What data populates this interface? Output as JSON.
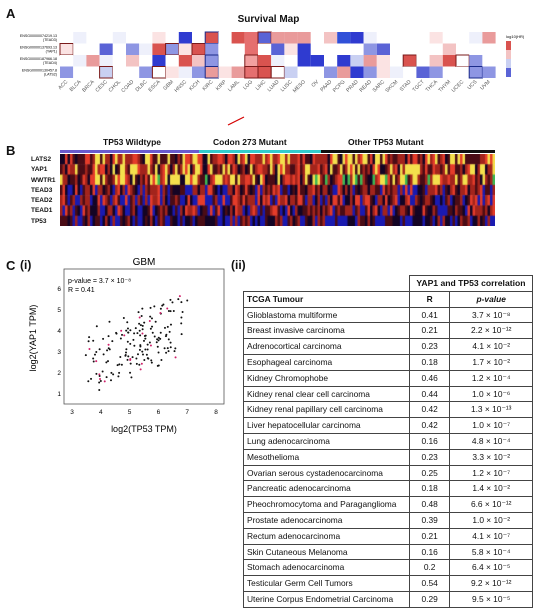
{
  "panelA": {
    "letter": "A",
    "title": "Survival Map",
    "rows": [
      "ENSG00000074219.13 (TEAD3)",
      "ENSG00000137693.13 (YAP1)",
      "ENSG00000187966.18 (TEAD4)",
      "ENSG00000130457.8 (LATS2)"
    ],
    "legend_title": "log10(HR)",
    "cancers": [
      "ACC",
      "BLCA",
      "BRCA",
      "CESC",
      "CHOL",
      "COAD",
      "DLBC",
      "ESCA",
      "GBM",
      "HNSC",
      "KICH",
      "KIRC",
      "KIRP",
      "LAML",
      "LGG",
      "LIHC",
      "LUAD",
      "LUSC",
      "MESO",
      "OV",
      "PAAD",
      "PCPG",
      "PRAD",
      "READ",
      "SARC",
      "SKCM",
      "STAD",
      "TGCT",
      "THCA",
      "THYM",
      "UCEC",
      "UCS",
      "UVM"
    ]
  },
  "panelB": {
    "letter": "B",
    "groups": [
      "TP53 Wildtype",
      "Codon 273 Mutant",
      "Other TP53 Mutant"
    ],
    "genes": [
      "LATS2",
      "YAP1",
      "WWTR1",
      "TEAD3",
      "TEAD2",
      "TEAD1",
      "TP53"
    ]
  },
  "panelC": {
    "letter": "C",
    "sub1": "(i)",
    "sub2": "(ii)",
    "scatter": {
      "title": "GBM",
      "pvalue_label": "p-value = 3.7 × 10⁻⁸",
      "r_label": "R = 0.41",
      "xlabel": "log2(TP53 TPM)",
      "ylabel": "log2(YAP1 TPM)",
      "xticks": [
        "3",
        "4",
        "5",
        "6",
        "7",
        "8"
      ],
      "yticks": [
        "1",
        "2",
        "3",
        "4",
        "5",
        "6"
      ]
    },
    "table": {
      "super_header": "YAP1 and TP53 correlation",
      "col_tumour": "TCGA Tumour",
      "col_r": "R",
      "col_p": "p-value",
      "rows": [
        {
          "tumour": "Glioblastoma multiforme",
          "r": "0.41",
          "p": "3.7 × 10⁻⁸"
        },
        {
          "tumour": "Breast invasive carcinoma",
          "r": "0.21",
          "p": "2.2 × 10⁻¹²"
        },
        {
          "tumour": "Adrenocortical carcinoma",
          "r": "0.23",
          "p": "4.1 × 10⁻²"
        },
        {
          "tumour": "Esophageal carcinoma",
          "r": "0.18",
          "p": "1.7 × 10⁻²"
        },
        {
          "tumour": "Kidney Chromophobe",
          "r": "0.46",
          "p": "1.2 × 10⁻⁴"
        },
        {
          "tumour": "Kidney renal clear cell carcinoma",
          "r": "0.44",
          "p": "1.0 × 10⁻⁶"
        },
        {
          "tumour": "Kidney renal papillary cell carcinoma",
          "r": "0.42",
          "p": "1.3 × 10⁻¹³"
        },
        {
          "tumour": "Liver hepatocellular carcinoma",
          "r": "0.42",
          "p": "1.0 × 10⁻⁷"
        },
        {
          "tumour": "Lung adenocarcinoma",
          "r": "0.16",
          "p": "4.8 × 10⁻⁴"
        },
        {
          "tumour": "Mesothelioma",
          "r": "0.23",
          "p": "3.3 × 10⁻²"
        },
        {
          "tumour": "Ovarian serous cystadenocarcinoma",
          "r": "0.25",
          "p": "1.2 × 10⁻⁷"
        },
        {
          "tumour": "Pancreatic adenocarcinoma",
          "r": "0.18",
          "p": "1.4 × 10⁻²"
        },
        {
          "tumour": "Pheochromocytoma and Paraganglioma",
          "r": "0.48",
          "p": "6.6 × 10⁻¹²"
        },
        {
          "tumour": "Prostate adenocarcinoma",
          "r": "0.39",
          "p": "1.0 × 10⁻²"
        },
        {
          "tumour": "Rectum adenocarcinoma",
          "r": "0.21",
          "p": "4.1 × 10⁻⁷"
        },
        {
          "tumour": "Skin Cutaneous Melanoma",
          "r": "0.16",
          "p": "5.8 × 10⁻⁴"
        },
        {
          "tumour": "Stomach adenocarcinoma",
          "r": "0.2",
          "p": "6.4 × 10⁻⁵"
        },
        {
          "tumour": "Testicular Germ Cell Tumors",
          "r": "0.54",
          "p": "9.2 × 10⁻¹²"
        },
        {
          "tumour": "Uterine Corpus Endometrial Carcinoma",
          "r": "0.29",
          "p": "9.5 × 10⁻⁵"
        }
      ]
    }
  }
}
